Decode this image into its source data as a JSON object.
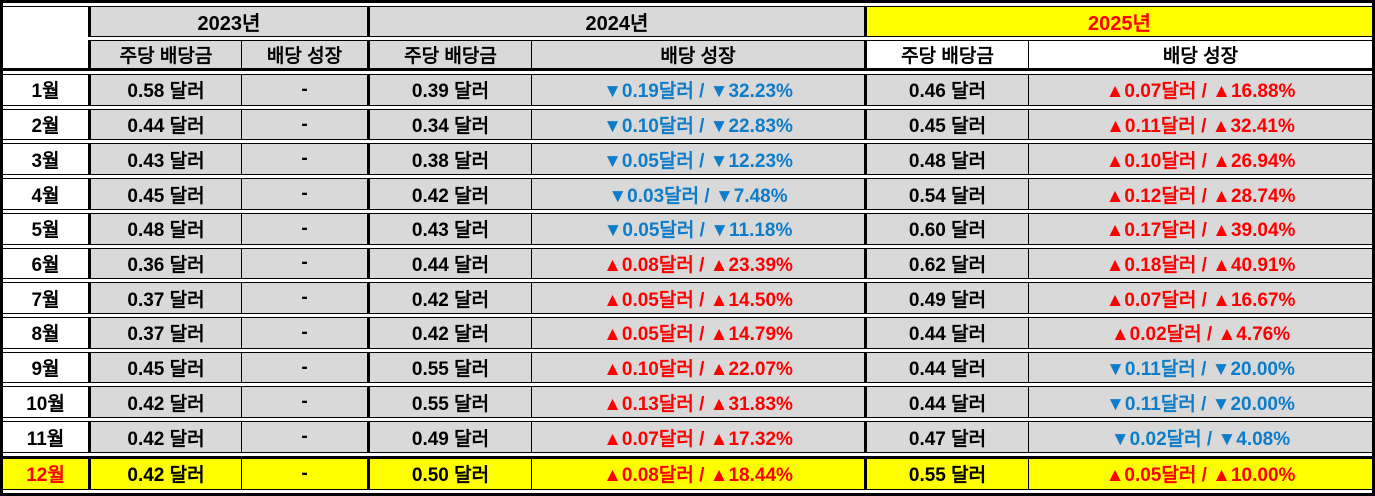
{
  "chart_data": {
    "type": "table",
    "title": "",
    "corner_label": "",
    "year_groups": [
      {
        "label": "2023년",
        "highlight": false
      },
      {
        "label": "2024년",
        "highlight": false
      },
      {
        "label": "2025년",
        "highlight": true
      }
    ],
    "columns": {
      "dps": "주당 배당금",
      "growth": "배당 성장"
    },
    "colors": {
      "growth_up_red": "#ff0000",
      "growth_down_blue": "#0d7cc9",
      "highlight_yellow": "#ffff00",
      "cell_gray": "#d9d9d9",
      "month_col_white": "#ffffff",
      "border_black": "#000000"
    },
    "rows": [
      {
        "month": "1월",
        "highlight": false,
        "y2023_dps": "0.58 달러",
        "y2023_growth": "-",
        "y2024_dps": "0.39 달러",
        "y2024_growth": "▼0.19달러 / ▼32.23%",
        "y2024_dir": "down",
        "y2025_dps": "0.46 달러",
        "y2025_growth": "▲0.07달러 / ▲16.88%",
        "y2025_dir": "up"
      },
      {
        "month": "2월",
        "highlight": false,
        "y2023_dps": "0.44 달러",
        "y2023_growth": "-",
        "y2024_dps": "0.34 달러",
        "y2024_growth": "▼0.10달러 / ▼22.83%",
        "y2024_dir": "down",
        "y2025_dps": "0.45 달러",
        "y2025_growth": "▲0.11달러 / ▲32.41%",
        "y2025_dir": "up"
      },
      {
        "month": "3월",
        "highlight": false,
        "y2023_dps": "0.43 달러",
        "y2023_growth": "-",
        "y2024_dps": "0.38 달러",
        "y2024_growth": "▼0.05달러 / ▼12.23%",
        "y2024_dir": "down",
        "y2025_dps": "0.48 달러",
        "y2025_growth": "▲0.10달러 / ▲26.94%",
        "y2025_dir": "up"
      },
      {
        "month": "4월",
        "highlight": false,
        "y2023_dps": "0.45 달러",
        "y2023_growth": "-",
        "y2024_dps": "0.42 달러",
        "y2024_growth": "▼0.03달러 / ▼7.48%",
        "y2024_dir": "down",
        "y2025_dps": "0.54 달러",
        "y2025_growth": "▲0.12달러 / ▲28.74%",
        "y2025_dir": "up"
      },
      {
        "month": "5월",
        "highlight": false,
        "y2023_dps": "0.48 달러",
        "y2023_growth": "-",
        "y2024_dps": "0.43 달러",
        "y2024_growth": "▼0.05달러 / ▼11.18%",
        "y2024_dir": "down",
        "y2025_dps": "0.60 달러",
        "y2025_growth": "▲0.17달러 / ▲39.04%",
        "y2025_dir": "up"
      },
      {
        "month": "6월",
        "highlight": false,
        "y2023_dps": "0.36 달러",
        "y2023_growth": "-",
        "y2024_dps": "0.44 달러",
        "y2024_growth": "▲0.08달러 / ▲23.39%",
        "y2024_dir": "up",
        "y2025_dps": "0.62 달러",
        "y2025_growth": "▲0.18달러 / ▲40.91%",
        "y2025_dir": "up"
      },
      {
        "month": "7월",
        "highlight": false,
        "y2023_dps": "0.37 달러",
        "y2023_growth": "-",
        "y2024_dps": "0.42 달러",
        "y2024_growth": "▲0.05달러 / ▲14.50%",
        "y2024_dir": "up",
        "y2025_dps": "0.49 달러",
        "y2025_growth": "▲0.07달러 / ▲16.67%",
        "y2025_dir": "up"
      },
      {
        "month": "8월",
        "highlight": false,
        "y2023_dps": "0.37 달러",
        "y2023_growth": "-",
        "y2024_dps": "0.42 달러",
        "y2024_growth": "▲0.05달러 / ▲14.79%",
        "y2024_dir": "up",
        "y2025_dps": "0.44 달러",
        "y2025_growth": "▲0.02달러 / ▲4.76%",
        "y2025_dir": "up"
      },
      {
        "month": "9월",
        "highlight": false,
        "y2023_dps": "0.45 달러",
        "y2023_growth": "-",
        "y2024_dps": "0.55 달러",
        "y2024_growth": "▲0.10달러 / ▲22.07%",
        "y2024_dir": "up",
        "y2025_dps": "0.44 달러",
        "y2025_growth": "▼0.11달러 / ▼20.00%",
        "y2025_dir": "down"
      },
      {
        "month": "10월",
        "highlight": false,
        "y2023_dps": "0.42 달러",
        "y2023_growth": "-",
        "y2024_dps": "0.55 달러",
        "y2024_growth": "▲0.13달러 / ▲31.83%",
        "y2024_dir": "up",
        "y2025_dps": "0.44 달러",
        "y2025_growth": "▼0.11달러 / ▼20.00%",
        "y2025_dir": "down"
      },
      {
        "month": "11월",
        "highlight": false,
        "y2023_dps": "0.42 달러",
        "y2023_growth": "-",
        "y2024_dps": "0.49 달러",
        "y2024_growth": "▲0.07달러 / ▲17.32%",
        "y2024_dir": "up",
        "y2025_dps": "0.47 달러",
        "y2025_growth": "▼0.02달러 / ▼4.08%",
        "y2025_dir": "down"
      },
      {
        "month": "12월",
        "highlight": true,
        "y2023_dps": "0.42 달러",
        "y2023_growth": "-",
        "y2024_dps": "0.50 달러",
        "y2024_growth": "▲0.08달러 / ▲18.44%",
        "y2024_dir": "up",
        "y2025_dps": "0.55 달러",
        "y2025_growth": "▲0.05달러 / ▲10.00%",
        "y2025_dir": "up"
      }
    ]
  }
}
